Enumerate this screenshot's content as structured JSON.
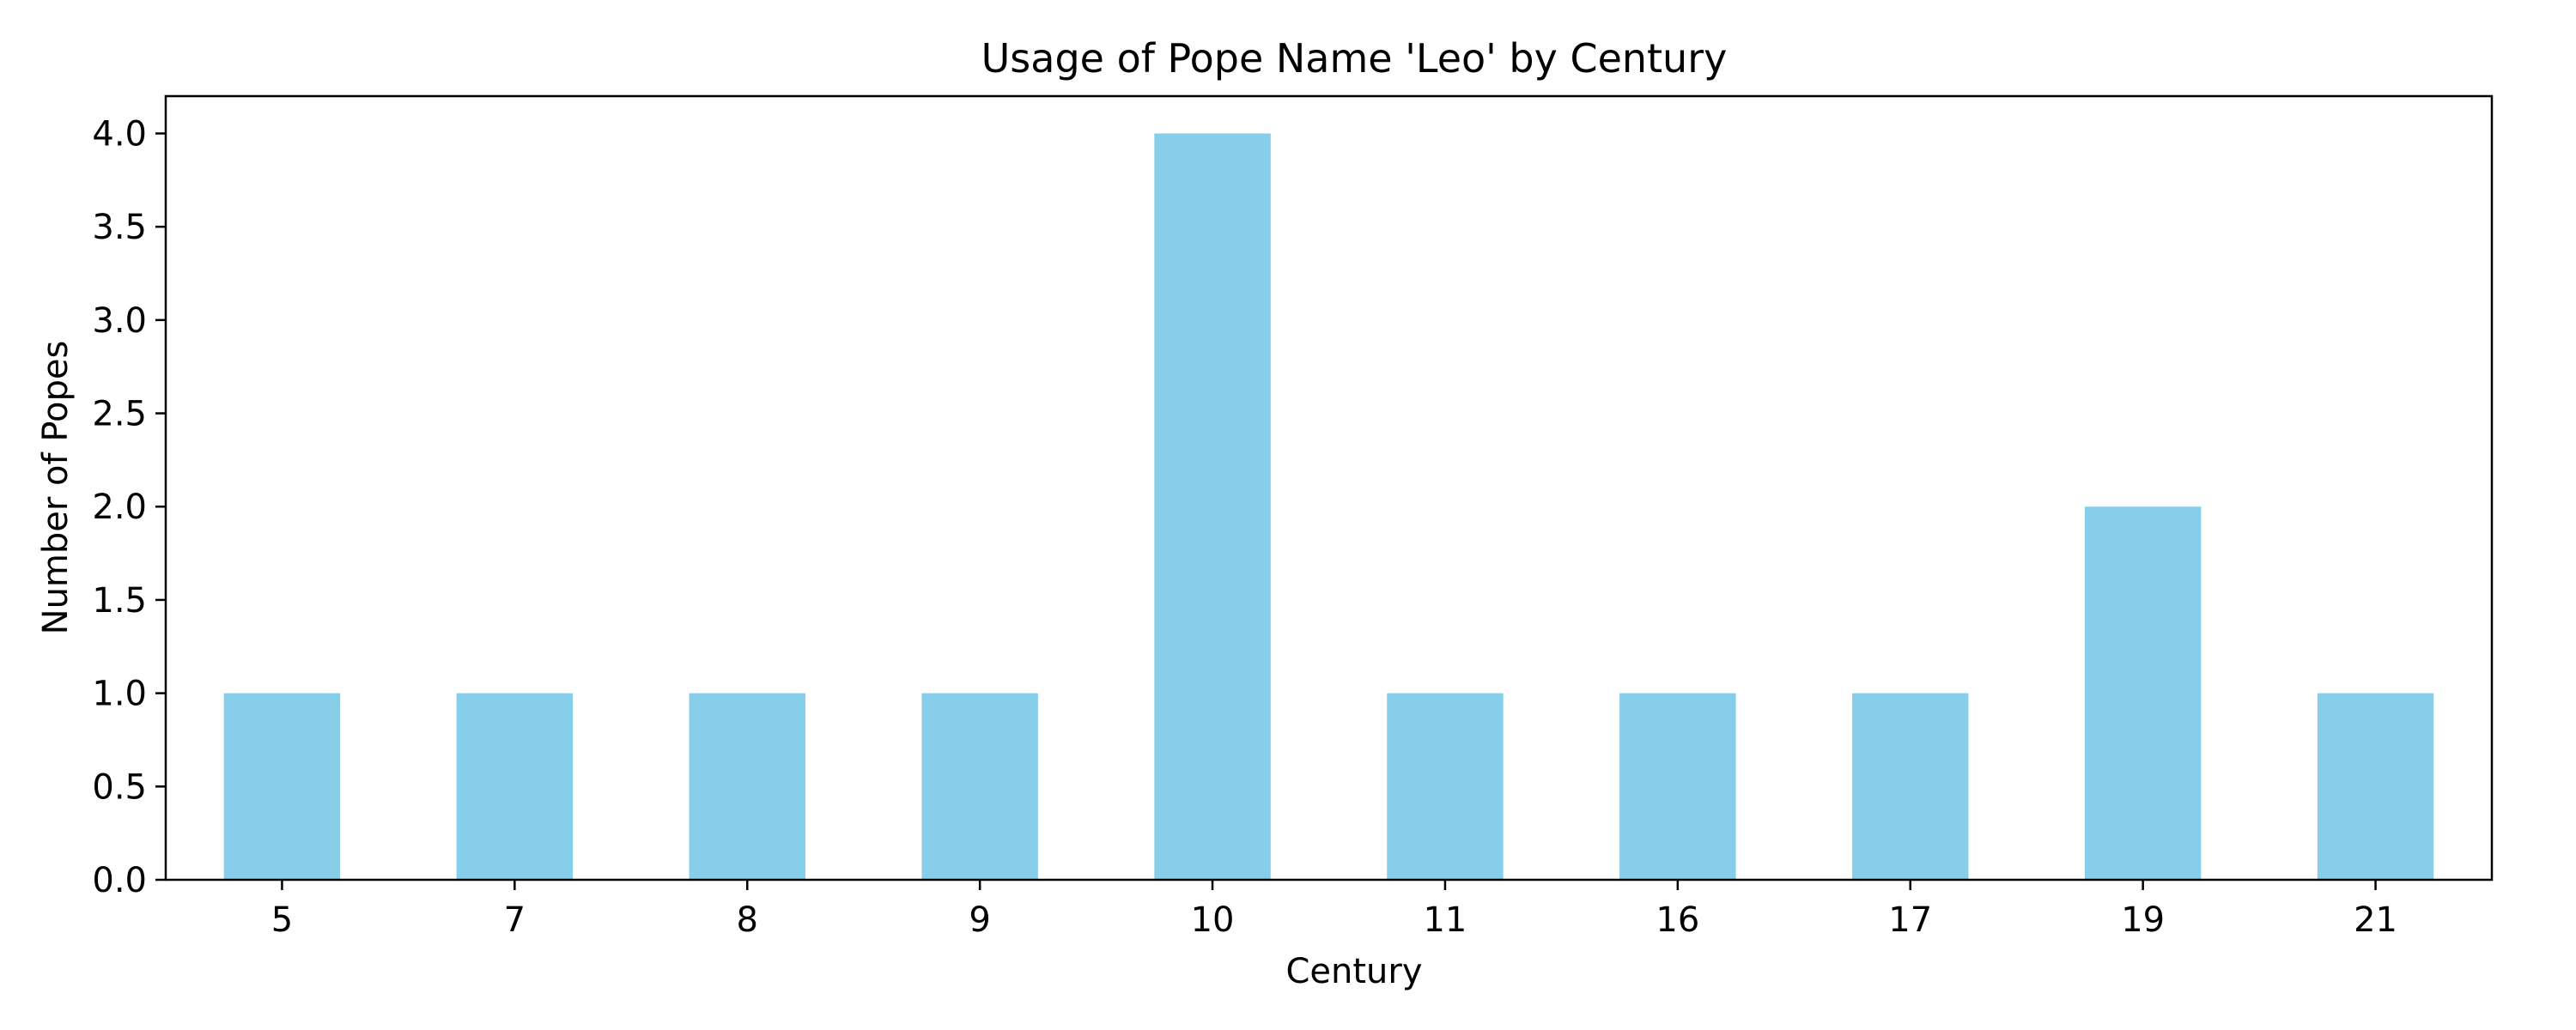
{
  "chart_data": {
    "type": "bar",
    "title": "Usage of Pope Name 'Leo' by Century",
    "xlabel": "Century",
    "ylabel": "Number of Popes",
    "categories": [
      "5",
      "7",
      "8",
      "9",
      "10",
      "11",
      "16",
      "17",
      "19",
      "21"
    ],
    "values": [
      1,
      1,
      1,
      1,
      4,
      1,
      1,
      1,
      2,
      1
    ],
    "ylim": [
      0,
      4.2
    ],
    "yticks": [
      "0.0",
      "0.5",
      "1.0",
      "1.5",
      "2.0",
      "2.5",
      "3.0",
      "3.5",
      "4.0"
    ],
    "ytick_values": [
      0,
      0.5,
      1.0,
      1.5,
      2.0,
      2.5,
      3.0,
      3.5,
      4.0
    ],
    "grid": false,
    "legend": "none",
    "colors": {
      "bar": "#87CEEB",
      "axis": "#000000",
      "background": "#ffffff"
    }
  }
}
